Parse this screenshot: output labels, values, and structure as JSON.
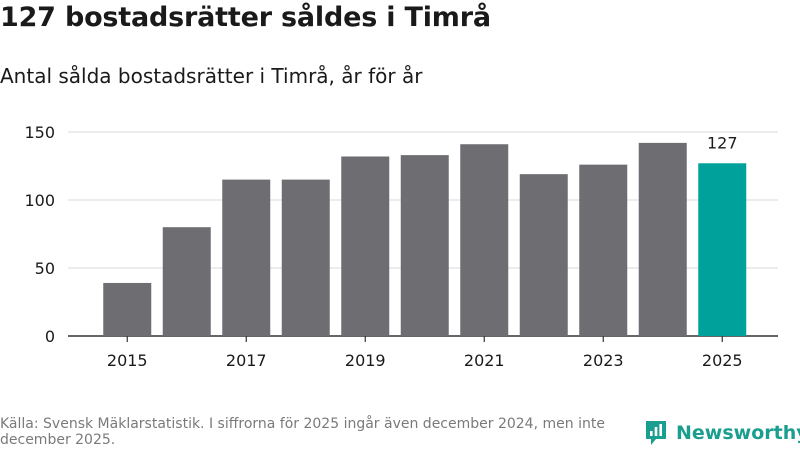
{
  "header": {
    "title": "127 bostadsrätter såldes i Timrå",
    "subtitle": "Antal sålda bostadsrätter i Timrå, år för år"
  },
  "footer": {
    "source": "Källa: Svensk Mäklarstatistik. I siffrorna för 2025 ingår även december 2024, men inte december 2025."
  },
  "brand": {
    "name": "Newsworthy",
    "color": "#1a9e8f"
  },
  "colors": {
    "bar": "#6e6d72",
    "highlight": "#00a19a",
    "grid": "#d9d9d9",
    "axis": "#333333",
    "tick_text": "#1a1a1a"
  },
  "chart_data": {
    "type": "bar",
    "title": "Antal sålda bostadsrätter i Timrå, år för år",
    "xlabel": "",
    "ylabel": "",
    "categories": [
      "2015",
      "2016",
      "2017",
      "2018",
      "2019",
      "2020",
      "2021",
      "2022",
      "2023",
      "2024",
      "2025"
    ],
    "values": [
      39,
      80,
      115,
      115,
      132,
      133,
      141,
      119,
      126,
      142,
      127
    ],
    "x_tick_labels": [
      "2015",
      "2017",
      "2019",
      "2021",
      "2023",
      "2025"
    ],
    "y_ticks": [
      0,
      50,
      100,
      150
    ],
    "ylim": [
      0,
      150
    ],
    "grid": true,
    "highlight_index": 10,
    "data_labels": [
      {
        "index": 10,
        "text": "127"
      }
    ]
  }
}
